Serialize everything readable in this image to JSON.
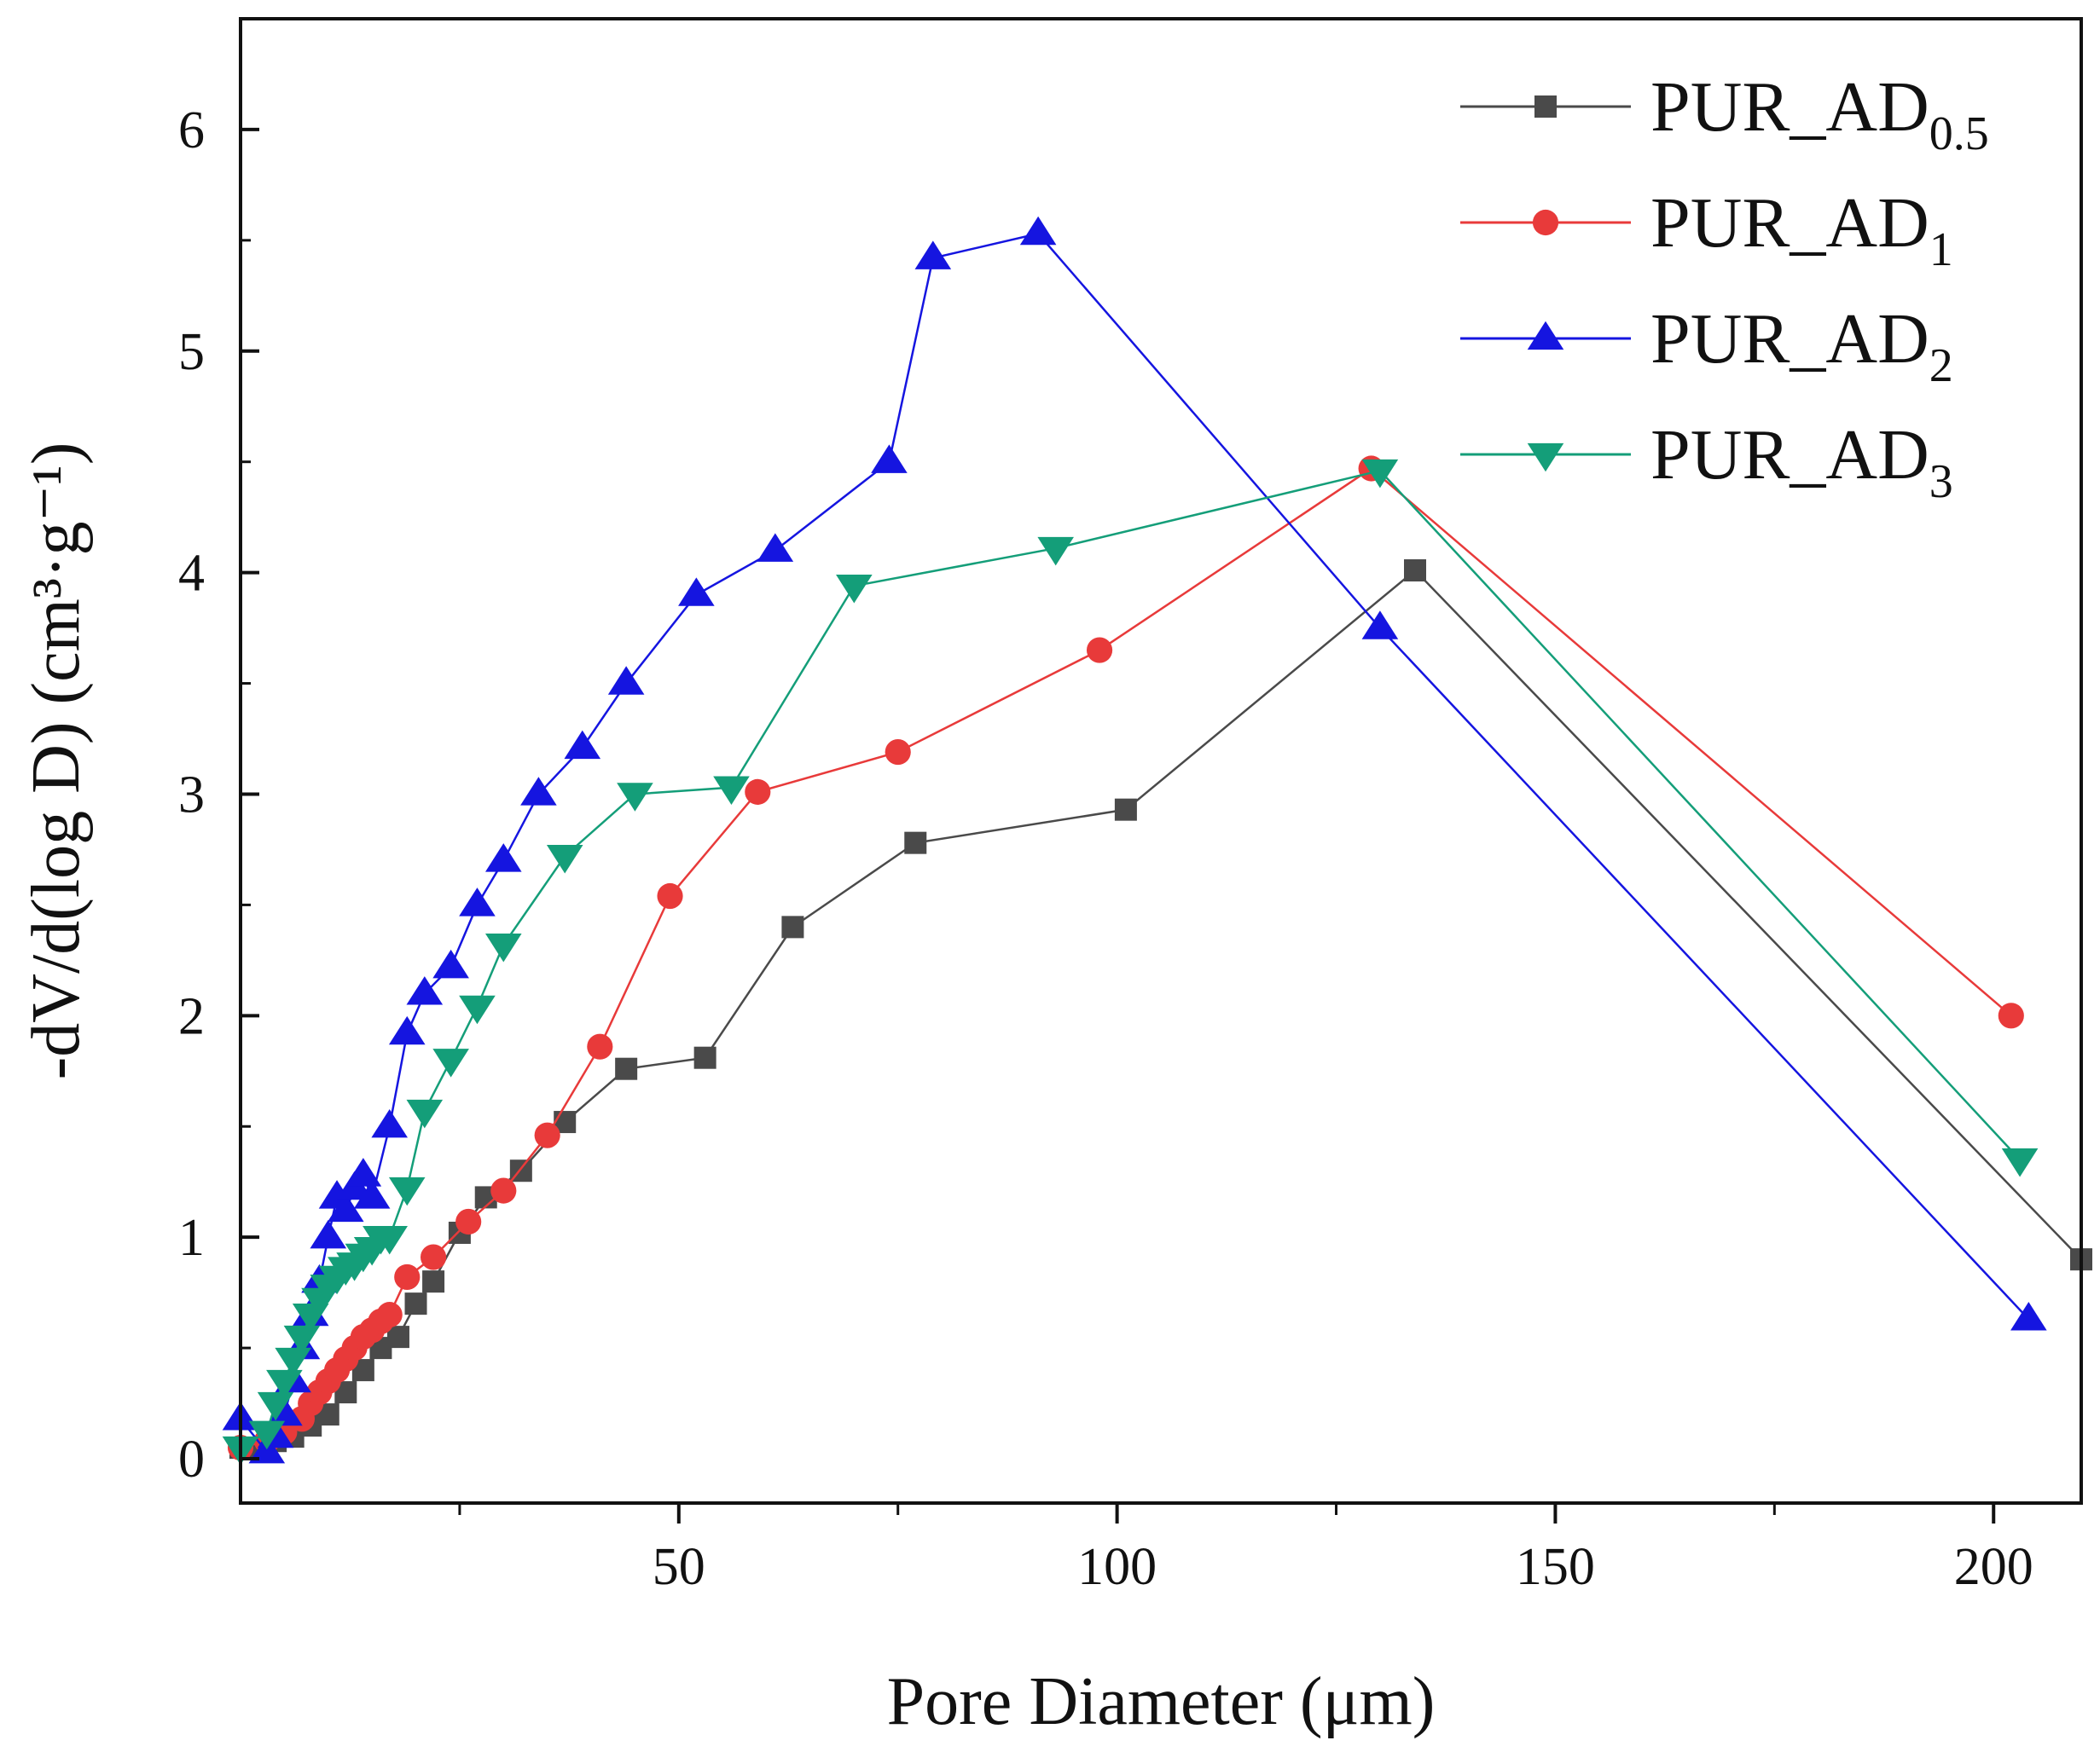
{
  "chart_data": {
    "type": "line",
    "title": "",
    "xlabel": "Pore Diameter (μm)",
    "ylabel": "-dV/d(log D) (cm³·g⁻¹)",
    "xlim": [
      0,
      210
    ],
    "ylim": [
      -0.2,
      6.5
    ],
    "x_ticks": [
      50,
      100,
      150,
      200
    ],
    "x_tick_labels": [
      "50",
      "100",
      "150",
      "200"
    ],
    "y_ticks": [
      0,
      1,
      2,
      3,
      4,
      5,
      6
    ],
    "y_tick_labels": [
      "0",
      "1",
      "2",
      "3",
      "4",
      "5",
      "6"
    ],
    "grid": false,
    "legend_position": "top-right",
    "series": [
      {
        "name": "PUR_AD0.5",
        "label_main": "PUR_AD",
        "label_sub": "0.5",
        "color": "#4a4a4a",
        "marker": "square",
        "x": [
          0,
          2,
          4,
          6,
          8,
          10,
          12,
          14,
          16,
          18,
          20,
          22,
          25,
          28,
          32,
          37,
          44,
          53,
          63,
          77,
          101,
          134,
          210
        ],
        "y": [
          0.05,
          0.05,
          0.08,
          0.1,
          0.15,
          0.2,
          0.3,
          0.4,
          0.5,
          0.55,
          0.7,
          0.8,
          1.02,
          1.18,
          1.3,
          1.52,
          1.76,
          1.81,
          2.4,
          2.78,
          2.93,
          4.01,
          0.9
        ]
      },
      {
        "name": "PUR_AD1",
        "label_main": "PUR_AD",
        "label_sub": "1",
        "color": "#e83a3a",
        "marker": "circle",
        "x": [
          0,
          3,
          5,
          7,
          8,
          9,
          10,
          11,
          12,
          13,
          14,
          15,
          16,
          17,
          19,
          22,
          26,
          30,
          35,
          41,
          49,
          59,
          75,
          98,
          129,
          202
        ],
        "y": [
          0.05,
          0.08,
          0.12,
          0.18,
          0.25,
          0.3,
          0.35,
          0.4,
          0.45,
          0.5,
          0.55,
          0.58,
          0.62,
          0.65,
          0.82,
          0.91,
          1.07,
          1.21,
          1.46,
          1.86,
          2.54,
          3.01,
          3.19,
          3.65,
          4.47,
          2.0
        ]
      },
      {
        "name": "PUR_AD2",
        "label_main": "PUR_AD",
        "label_sub": "2",
        "color": "#1515e0",
        "marker": "triangle-up",
        "x": [
          0,
          3,
          4,
          5,
          6,
          7,
          8,
          9,
          10,
          11,
          12,
          13,
          14,
          15,
          17,
          19,
          21,
          24,
          27,
          30,
          34,
          39,
          44,
          52,
          61,
          74,
          79,
          91,
          130,
          204
        ],
        "y": [
          0.18,
          0.03,
          0.1,
          0.2,
          0.35,
          0.5,
          0.65,
          0.8,
          1.0,
          1.18,
          1.12,
          1.22,
          1.28,
          1.18,
          1.5,
          1.92,
          2.1,
          2.22,
          2.5,
          2.7,
          3.0,
          3.21,
          3.5,
          3.9,
          4.1,
          4.5,
          5.42,
          5.53,
          3.75,
          0.63
        ]
      },
      {
        "name": "PUR_AD3",
        "label_main": "PUR_AD",
        "label_sub": "3",
        "color": "#149e79",
        "marker": "triangle-down",
        "x": [
          0,
          3,
          4,
          5,
          6,
          7,
          8,
          9,
          10,
          11,
          12,
          13,
          14,
          15,
          16,
          17,
          19,
          21,
          24,
          27,
          30,
          37,
          45,
          56,
          70,
          93,
          130,
          203
        ],
        "y": [
          0.05,
          0.12,
          0.25,
          0.35,
          0.45,
          0.55,
          0.65,
          0.72,
          0.78,
          0.82,
          0.86,
          0.88,
          0.92,
          0.95,
          1.0,
          1.0,
          1.22,
          1.57,
          1.8,
          2.04,
          2.32,
          2.72,
          3.0,
          3.03,
          3.94,
          4.11,
          4.46,
          1.35
        ]
      }
    ]
  }
}
